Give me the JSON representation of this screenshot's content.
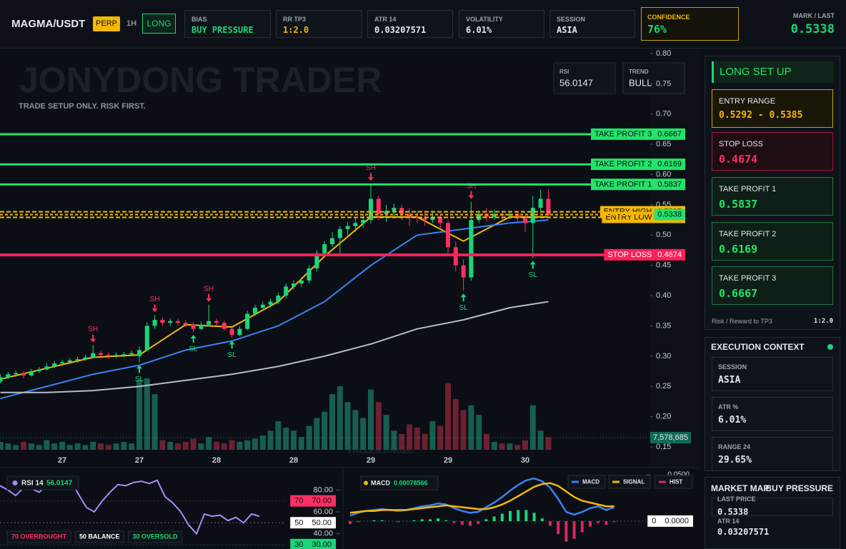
{
  "header": {
    "symbol": "MAGMA/USDT",
    "market": "PERP",
    "timeframe": "1H",
    "side": "LONG",
    "stats": [
      {
        "label": "BIAS",
        "value": "BUY PRESSURE"
      },
      {
        "label": "RR TP3",
        "value": "1:2.0"
      },
      {
        "label": "ATR 14",
        "value": "0.03207571"
      },
      {
        "label": "VOLATILITY",
        "value": "6.01%"
      },
      {
        "label": "SESSION",
        "value": "ASIA"
      },
      {
        "label": "CONFIDENCE",
        "value": "76%"
      }
    ],
    "mark_label": "MARK / LAST",
    "mark_value": "0.5338"
  },
  "chart_data": [
    {
      "type": "candlestick",
      "watermark": "JONYDONG TRADER",
      "subtitle": "TRADE SETUP ONLY. RISK FIRST.",
      "footer_text": "FALLEN ANGEL",
      "indicators": [
        {
          "name": "RSI",
          "value": "56.0147"
        },
        {
          "name": "TREND",
          "value": "BULL"
        }
      ],
      "ylim": [
        0.15,
        0.8
      ],
      "yticks": [
        {
          "value": 0.8,
          "label": "0.80"
        },
        0.75,
        {
          "value": 0.7,
          "label": "0.70"
        },
        0.65,
        {
          "value": 0.6,
          "label": "0.60"
        },
        0.55,
        {
          "value": 0.5,
          "label": "0.50"
        },
        0.45,
        {
          "value": 0.4,
          "label": "0.40"
        },
        0.35,
        {
          "value": 0.3,
          "label": "0.30"
        },
        0.25,
        {
          "value": 0.2,
          "label": "0.20"
        },
        0.15
      ],
      "categories": [
        null,
        null,
        null,
        null,
        null,
        null,
        null,
        null,
        "27",
        null,
        null,
        null,
        null,
        null,
        null,
        null,
        null,
        null,
        "27",
        null,
        null,
        null,
        null,
        null,
        null,
        null,
        null,
        null,
        "28",
        null,
        null,
        null,
        null,
        null,
        null,
        null,
        null,
        null,
        "28",
        null,
        null,
        null,
        null,
        null,
        null,
        null,
        null,
        null,
        "29",
        null,
        null,
        null,
        null,
        null,
        null,
        null,
        null,
        null,
        "29",
        null,
        null,
        null,
        null,
        null,
        null,
        null,
        null,
        null,
        "30",
        null,
        null,
        null
      ],
      "candles": [
        [
          0.258,
          0.27,
          0.255,
          0.265
        ],
        [
          0.265,
          0.274,
          0.262,
          0.27
        ],
        [
          0.27,
          0.276,
          0.266,
          0.272
        ],
        [
          0.272,
          0.275,
          0.264,
          0.268
        ],
        [
          0.268,
          0.279,
          0.266,
          0.275
        ],
        [
          0.275,
          0.282,
          0.272,
          0.278
        ],
        [
          0.278,
          0.288,
          0.276,
          0.283
        ],
        [
          0.283,
          0.292,
          0.28,
          0.288
        ],
        [
          0.288,
          0.294,
          0.284,
          0.29
        ],
        [
          0.29,
          0.297,
          0.287,
          0.293
        ],
        [
          0.293,
          0.299,
          0.289,
          0.295
        ],
        [
          0.295,
          0.302,
          0.292,
          0.298
        ],
        [
          0.298,
          0.318,
          0.296,
          0.305
        ],
        [
          0.305,
          0.309,
          0.298,
          0.302
        ],
        [
          0.302,
          0.306,
          0.296,
          0.3
        ],
        [
          0.3,
          0.306,
          0.297,
          0.302
        ],
        [
          0.302,
          0.307,
          0.298,
          0.303
        ],
        [
          0.303,
          0.309,
          0.3,
          0.305
        ],
        [
          0.3,
          0.316,
          0.29,
          0.31
        ],
        [
          0.31,
          0.356,
          0.308,
          0.35
        ],
        [
          0.35,
          0.368,
          0.345,
          0.36
        ],
        [
          0.36,
          0.364,
          0.35,
          0.355
        ],
        [
          0.355,
          0.362,
          0.35,
          0.358
        ],
        [
          0.358,
          0.362,
          0.35,
          0.355
        ],
        [
          0.355,
          0.36,
          0.348,
          0.352
        ],
        [
          0.352,
          0.356,
          0.34,
          0.345
        ],
        [
          0.345,
          0.357,
          0.343,
          0.352
        ],
        [
          0.352,
          0.385,
          0.35,
          0.358
        ],
        [
          0.358,
          0.362,
          0.35,
          0.355
        ],
        [
          0.355,
          0.358,
          0.342,
          0.345
        ],
        [
          0.345,
          0.348,
          0.33,
          0.335
        ],
        [
          0.335,
          0.35,
          0.333,
          0.345
        ],
        [
          0.345,
          0.375,
          0.343,
          0.37
        ],
        [
          0.37,
          0.385,
          0.366,
          0.38
        ],
        [
          0.38,
          0.39,
          0.375,
          0.385
        ],
        [
          0.385,
          0.395,
          0.38,
          0.39
        ],
        [
          0.39,
          0.405,
          0.386,
          0.4
        ],
        [
          0.4,
          0.42,
          0.395,
          0.415
        ],
        [
          0.415,
          0.425,
          0.41,
          0.42
        ],
        [
          0.42,
          0.43,
          0.415,
          0.425
        ],
        [
          0.425,
          0.45,
          0.42,
          0.445
        ],
        [
          0.445,
          0.475,
          0.44,
          0.47
        ],
        [
          0.47,
          0.49,
          0.465,
          0.485
        ],
        [
          0.485,
          0.505,
          0.48,
          0.495
        ],
        [
          0.495,
          0.515,
          0.47,
          0.51
        ],
        [
          0.51,
          0.522,
          0.5,
          0.515
        ],
        [
          0.515,
          0.53,
          0.505,
          0.52
        ],
        [
          0.52,
          0.535,
          0.512,
          0.525
        ],
        [
          0.525,
          0.585,
          0.52,
          0.56
        ],
        [
          0.56,
          0.565,
          0.525,
          0.535
        ],
        [
          0.535,
          0.55,
          0.522,
          0.54
        ],
        [
          0.54,
          0.552,
          0.53,
          0.545
        ],
        [
          0.545,
          0.55,
          0.525,
          0.535
        ],
        [
          0.535,
          0.545,
          0.515,
          0.53
        ],
        [
          0.53,
          0.54,
          0.52,
          0.528
        ],
        [
          0.528,
          0.538,
          0.515,
          0.525
        ],
        [
          0.525,
          0.538,
          0.52,
          0.53
        ],
        [
          0.53,
          0.535,
          0.512,
          0.52
        ],
        [
          0.52,
          0.525,
          0.47,
          0.48
        ],
        [
          0.48,
          0.49,
          0.44,
          0.45
        ],
        [
          0.45,
          0.46,
          0.408,
          0.43
        ],
        [
          0.43,
          0.555,
          0.425,
          0.525
        ],
        [
          0.525,
          0.54,
          0.52,
          0.535
        ],
        [
          0.535,
          0.545,
          0.522,
          0.53
        ],
        [
          0.53,
          0.542,
          0.525,
          0.535
        ],
        [
          0.535,
          0.54,
          0.525,
          0.532
        ],
        [
          0.532,
          0.54,
          0.527,
          0.535
        ],
        [
          0.535,
          0.538,
          0.52,
          0.528
        ],
        [
          0.528,
          0.532,
          0.505,
          0.52
        ],
        [
          0.52,
          0.565,
          0.462,
          0.545
        ],
        [
          0.545,
          0.575,
          0.54,
          0.56
        ],
        [
          0.56,
          0.575,
          0.528,
          0.5338
        ]
      ],
      "up_color": "#19d67a",
      "down_color": "#ff2e63",
      "volumes": [
        5000000.0,
        4000000.0,
        3000000.0,
        5000000.0,
        4000000.0,
        3000000.0,
        6000000.0,
        4000000.0,
        5000000.0,
        3000000.0,
        4000000.0,
        3000000.0,
        5000000.0,
        4000000.0,
        3000000.0,
        4000000.0,
        5000000.0,
        4000000.0,
        44000000.0,
        45000000.0,
        35000000.0,
        6000000.0,
        5000000.0,
        4000000.0,
        5000000.0,
        7000000.0,
        4000000.0,
        8000000.0,
        5000000.0,
        4000000.0,
        6000000.0,
        5000000.0,
        6000000.0,
        7000000.0,
        9000000.0,
        12000000.0,
        18000000.0,
        14000000.0,
        12000000.0,
        8000000.0,
        15000000.0,
        20000000.0,
        24000000.0,
        35000000.0,
        40000000.0,
        30000000.0,
        25000000.0,
        20000000.0,
        38000000.0,
        30000000.0,
        22000000.0,
        12000000.0,
        10000000.0,
        16000000.0,
        14000000.0,
        10000000.0,
        18000000.0,
        15000000.0,
        42000000.0,
        32000000.0,
        25000000.0,
        28000000.0,
        22000000.0,
        10000000.0,
        5000000.0,
        4000000.0,
        4000000.0,
        3000000.0,
        6000000.0,
        28000000.0,
        12000000.0,
        8000000.0
      ],
      "volume_ylim": [
        0,
        45000000
      ],
      "volume_marker": {
        "value": 7578685,
        "label": "7,578,685"
      },
      "ma_lines": [
        {
          "color": "#f5b800",
          "x": [
            0,
            6,
            12,
            18,
            24,
            30,
            36,
            42,
            48,
            54,
            60,
            66,
            71
          ],
          "values": [
            0.262,
            0.28,
            0.298,
            0.302,
            0.352,
            0.348,
            0.39,
            0.465,
            0.53,
            0.53,
            0.49,
            0.53,
            0.53
          ]
        },
        {
          "color": "#3b82f6",
          "x": [
            0,
            6,
            12,
            18,
            24,
            30,
            36,
            42,
            48,
            54,
            60,
            66,
            71
          ],
          "values": [
            0.23,
            0.25,
            0.27,
            0.285,
            0.31,
            0.325,
            0.35,
            0.39,
            0.45,
            0.5,
            0.51,
            0.52,
            0.525
          ]
        },
        {
          "color": "#b8bcc4",
          "x": [
            0,
            6,
            12,
            18,
            24,
            30,
            36,
            42,
            48,
            54,
            60,
            66,
            71
          ],
          "values": [
            0.24,
            0.24,
            0.243,
            0.25,
            0.26,
            0.27,
            0.283,
            0.3,
            0.32,
            0.345,
            0.36,
            0.38,
            0.39
          ]
        }
      ],
      "pivots": [
        {
          "label": "SH",
          "index": 12,
          "price": 0.318
        },
        {
          "label": "SL",
          "index": 18,
          "price": 0.29
        },
        {
          "label": "SH",
          "index": 20,
          "price": 0.368
        },
        {
          "label": "SL",
          "index": 25,
          "price": 0.34
        },
        {
          "label": "SH",
          "index": 27,
          "price": 0.385
        },
        {
          "label": "SL",
          "index": 30,
          "price": 0.33
        },
        {
          "label": "SH",
          "index": 48,
          "price": 0.585
        },
        {
          "label": "SL",
          "index": 60,
          "price": 0.408
        },
        {
          "label": "SH",
          "index": 61,
          "price": 0.555
        },
        {
          "label": "SL",
          "index": 69,
          "price": 0.462
        }
      ],
      "levels": [
        {
          "label": "TAKE PROFIT 3",
          "price": 0.6667,
          "color": "#22e36b",
          "style": "solid"
        },
        {
          "label": "TAKE PROFIT 2",
          "price": 0.6169,
          "color": "#22e36b",
          "style": "solid"
        },
        {
          "label": "TAKE PROFIT 1",
          "price": 0.5837,
          "color": "#22e36b",
          "style": "solid"
        },
        {
          "label": "ENTRY HIGH",
          "price": 0.5385,
          "color": "#f5b800",
          "style": "dashed"
        },
        {
          "label": "ENTRY LOW",
          "price": 0.5292,
          "color": "#f5b800",
          "style": "dashed"
        },
        {
          "label": "STOP LOSS",
          "price": 0.4674,
          "color": "#ff1f5a",
          "style": "solid"
        }
      ],
      "last_price": 0.5338
    },
    {
      "type": "line",
      "title": "RSI 14",
      "value_text": "56.0147",
      "color": "#a78bfa",
      "ylim": [
        26,
        94
      ],
      "yticks": [
        {
          "value": 80,
          "label": "80.00"
        },
        {
          "value": 60,
          "label": "60.00"
        },
        {
          "value": 40,
          "label": "40.00"
        }
      ],
      "thresholds": [
        {
          "label": "70",
          "tick": {
            "value": 70,
            "label": "70.00"
          },
          "color": "#ff2e63"
        },
        {
          "label": "50",
          "tick": {
            "value": 50,
            "label": "50.00"
          },
          "color": "#ffffff"
        },
        {
          "label": "30",
          "tick": {
            "value": 30,
            "label": "30.00"
          },
          "color": "#19d67a"
        }
      ],
      "legend": [
        "70 OVERBOUGHT",
        "50 BALANCE",
        "30 OVERSOLD"
      ],
      "values": [
        84,
        80,
        75,
        82,
        81,
        78,
        85,
        86,
        83,
        88,
        76,
        64,
        60,
        70,
        78,
        85,
        84,
        87,
        88,
        86,
        89,
        74,
        68,
        60,
        48,
        40,
        58,
        56,
        57,
        52,
        55,
        50,
        58,
        56
      ]
    },
    {
      "type": "macd",
      "title": "MACD",
      "value_text": "0.00078566",
      "ylim": [
        -0.03,
        0.05
      ],
      "yticks": [
        {
          "value": 0.05,
          "label": "0.0500"
        }
      ],
      "zero": {
        "label": "0",
        "tick": {
          "value": 0,
          "label": "0.0000"
        }
      },
      "series": [
        {
          "name": "MACD",
          "color": "#3b82f6",
          "values": [
            0.006,
            0.009,
            0.011,
            0.012,
            0.013,
            0.012,
            0.011,
            0.012,
            0.014,
            0.016,
            0.017,
            0.019,
            0.018,
            0.014,
            0.011,
            0.009,
            0.01,
            0.015,
            0.02,
            0.026,
            0.033,
            0.039,
            0.044,
            0.046,
            0.043,
            0.036,
            0.024,
            0.01,
            0.007,
            0.01,
            0.014,
            0.016,
            0.012,
            0.015
          ]
        },
        {
          "name": "SIGNAL",
          "color": "#f5b800",
          "values": [
            0.009,
            0.01,
            0.011,
            0.011,
            0.012,
            0.012,
            0.012,
            0.012,
            0.013,
            0.014,
            0.015,
            0.016,
            0.017,
            0.016,
            0.015,
            0.014,
            0.013,
            0.013,
            0.015,
            0.018,
            0.022,
            0.027,
            0.032,
            0.037,
            0.04,
            0.041,
            0.038,
            0.032,
            0.026,
            0.022,
            0.02,
            0.018,
            0.016,
            0.016
          ]
        },
        {
          "name": "HIST",
          "color": "#e0245e",
          "values": [
            -0.003,
            -0.001,
            0,
            0.001,
            0.001,
            0,
            -0.001,
            0,
            0.001,
            0.002,
            0.002,
            0.003,
            0.001,
            -0.002,
            -0.004,
            -0.005,
            -0.003,
            0.002,
            0.005,
            0.008,
            0.011,
            0.012,
            0.012,
            0.009,
            0.003,
            -0.005,
            -0.014,
            -0.022,
            -0.019,
            -0.012,
            -0.006,
            -0.002,
            -0.004,
            -0.001
          ]
        }
      ]
    }
  ],
  "setup": {
    "title": "LONG SET UP",
    "cards": [
      {
        "label": "ENTRY RANGE",
        "value": "0.5292 - 0.5385"
      },
      {
        "label": "STOP LOSS",
        "value": "0.4674"
      },
      {
        "label": "TAKE PROFIT 1",
        "value": "0.5837"
      },
      {
        "label": "TAKE PROFIT 2",
        "value": "0.6169"
      },
      {
        "label": "TAKE PROFIT 3",
        "value": "0.6667"
      }
    ],
    "footer_label": "Risk / Reward to TP3",
    "footer_value": "1:2.0"
  },
  "context": {
    "title": "EXECUTION CONTEXT",
    "items": [
      {
        "label": "SESSION",
        "value": "ASIA"
      },
      {
        "label": "ATR %",
        "value": "6.01%"
      },
      {
        "label": "RANGE 24",
        "value": "29.65%"
      }
    ]
  },
  "market_map": {
    "title": "MARKET MAP",
    "status": "BUY PRESSURE",
    "items": [
      {
        "label": "LAST PRICE",
        "value": "0.5338"
      },
      {
        "label": "ATR 14",
        "value": "0.03207571"
      }
    ]
  }
}
